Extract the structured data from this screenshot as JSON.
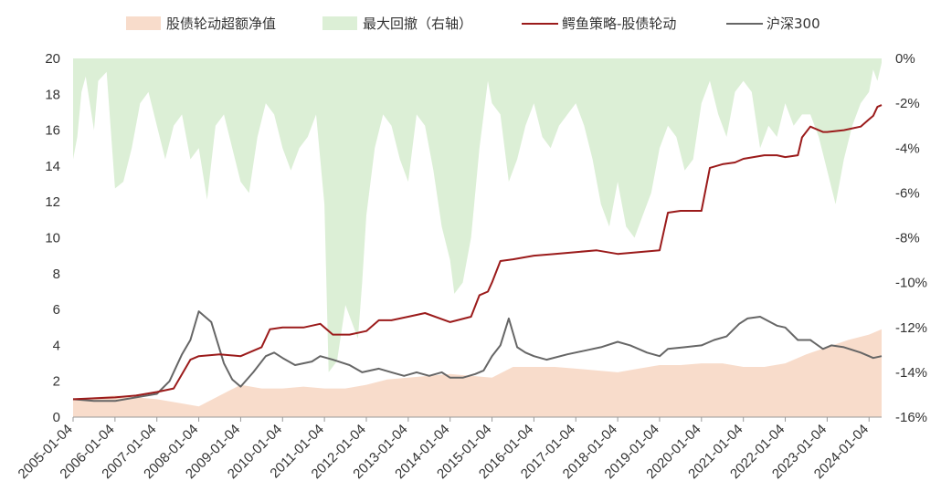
{
  "chart_data": {
    "type": "line",
    "title": "",
    "xlabel": "",
    "ylabel": "",
    "ylim": [
      0,
      20
    ],
    "y2lim": [
      -16,
      0
    ],
    "left_ticks": [
      "0",
      "2",
      "4",
      "6",
      "8",
      "10",
      "12",
      "14",
      "16",
      "18",
      "20"
    ],
    "right_ticks": [
      "0%",
      "-2%",
      "-4%",
      "-6%",
      "-8%",
      "-10%",
      "-12%",
      "-14%",
      "-16%"
    ],
    "x_ticks": [
      "2005-01-04",
      "2006-01-04",
      "2007-01-04",
      "2008-01-04",
      "2009-01-04",
      "2010-01-04",
      "2011-01-04",
      "2012-01-04",
      "2013-01-04",
      "2014-01-04",
      "2015-01-04",
      "2016-01-04",
      "2017-01-04",
      "2018-01-04",
      "2019-01-04",
      "2020-01-04",
      "2021-01-04",
      "2022-01-04",
      "2023-01-04",
      "2024-01-04"
    ],
    "legend": [
      {
        "name": "股债轮动超额净值",
        "kind": "area",
        "color": "#f8dccb"
      },
      {
        "name": "最大回撤（右轴）",
        "kind": "area",
        "color": "#dcefd6"
      },
      {
        "name": "鳄鱼策略-股债轮动",
        "kind": "line",
        "color": "#9b1b1b"
      },
      {
        "name": "沪深300",
        "kind": "line",
        "color": "#666666"
      }
    ],
    "series": [
      {
        "name": "鳄鱼策略-股债轮动",
        "axis": "left",
        "x": [
          2005.0,
          2005.5,
          2006.0,
          2006.5,
          2007.0,
          2007.4,
          2007.8,
          2008.0,
          2008.5,
          2009.0,
          2009.5,
          2009.7,
          2010.0,
          2010.5,
          2010.9,
          2011.2,
          2011.6,
          2012.0,
          2012.3,
          2012.6,
          2013.0,
          2013.4,
          2014.0,
          2014.5,
          2014.7,
          2014.9,
          2015.0,
          2015.2,
          2015.5,
          2016.0,
          2016.5,
          2017.0,
          2017.5,
          2018.0,
          2018.5,
          2019.0,
          2019.2,
          2019.5,
          2020.0,
          2020.2,
          2020.5,
          2020.8,
          2021.0,
          2021.5,
          2021.8,
          2022.0,
          2022.3,
          2022.4,
          2022.6,
          2022.9,
          2023.0,
          2023.4,
          2023.8,
          2024.0,
          2024.1,
          2024.2,
          2024.3
        ],
        "values": [
          1.0,
          1.05,
          1.1,
          1.2,
          1.4,
          1.6,
          3.2,
          3.4,
          3.5,
          3.4,
          3.9,
          4.9,
          5.0,
          5.0,
          5.2,
          4.6,
          4.6,
          4.8,
          5.4,
          5.4,
          5.6,
          5.8,
          5.3,
          5.6,
          6.8,
          7.0,
          7.5,
          8.7,
          8.8,
          9.0,
          9.1,
          9.2,
          9.3,
          9.1,
          9.2,
          9.3,
          11.4,
          11.5,
          11.5,
          13.9,
          14.1,
          14.2,
          14.4,
          14.6,
          14.6,
          14.5,
          14.6,
          15.6,
          16.2,
          15.9,
          15.9,
          16.0,
          16.2,
          16.6,
          16.8,
          17.3,
          17.4
        ]
      },
      {
        "name": "沪深300",
        "axis": "left",
        "x": [
          2005.0,
          2005.5,
          2006.0,
          2006.5,
          2007.0,
          2007.3,
          2007.6,
          2007.8,
          2008.0,
          2008.3,
          2008.6,
          2008.8,
          2009.0,
          2009.3,
          2009.6,
          2009.8,
          2010.0,
          2010.3,
          2010.7,
          2010.9,
          2011.2,
          2011.6,
          2011.9,
          2012.3,
          2012.6,
          2012.9,
          2013.2,
          2013.5,
          2013.8,
          2014.0,
          2014.3,
          2014.6,
          2014.8,
          2015.0,
          2015.2,
          2015.4,
          2015.6,
          2015.8,
          2016.0,
          2016.3,
          2016.8,
          2017.2,
          2017.6,
          2018.0,
          2018.3,
          2018.7,
          2019.0,
          2019.2,
          2019.6,
          2020.0,
          2020.3,
          2020.6,
          2020.9,
          2021.1,
          2021.4,
          2021.8,
          2022.0,
          2022.3,
          2022.6,
          2022.9,
          2023.1,
          2023.4,
          2023.8,
          2024.0,
          2024.1,
          2024.3
        ],
        "values": [
          1.0,
          0.9,
          0.9,
          1.1,
          1.3,
          2.0,
          3.5,
          4.3,
          5.9,
          5.3,
          3.0,
          2.1,
          1.7,
          2.5,
          3.4,
          3.6,
          3.3,
          2.9,
          3.1,
          3.4,
          3.2,
          2.9,
          2.5,
          2.7,
          2.5,
          2.3,
          2.5,
          2.3,
          2.5,
          2.2,
          2.2,
          2.4,
          2.6,
          3.4,
          4.0,
          5.5,
          3.9,
          3.6,
          3.4,
          3.2,
          3.5,
          3.7,
          3.9,
          4.2,
          4.0,
          3.6,
          3.4,
          3.8,
          3.9,
          4.0,
          4.3,
          4.5,
          5.2,
          5.5,
          5.6,
          5.1,
          5.0,
          4.3,
          4.3,
          3.8,
          4.0,
          3.9,
          3.6,
          3.4,
          3.3,
          3.4
        ]
      },
      {
        "name": "股债轮动超额净值",
        "axis": "left",
        "x": [
          2005.0,
          2005.5,
          2006.0,
          2006.5,
          2007.0,
          2007.5,
          2008.0,
          2008.5,
          2009.0,
          2009.5,
          2010.0,
          2010.5,
          2011.0,
          2011.5,
          2012.0,
          2012.5,
          2013.0,
          2013.5,
          2014.0,
          2014.5,
          2015.0,
          2015.5,
          2016.0,
          2016.5,
          2017.0,
          2017.5,
          2018.0,
          2018.5,
          2019.0,
          2019.5,
          2020.0,
          2020.5,
          2021.0,
          2021.5,
          2022.0,
          2022.5,
          2023.0,
          2023.5,
          2024.0,
          2024.3
        ],
        "values": [
          1.0,
          1.1,
          1.2,
          1.1,
          1.0,
          0.8,
          0.6,
          1.2,
          1.8,
          1.6,
          1.6,
          1.7,
          1.6,
          1.6,
          1.8,
          2.1,
          2.2,
          2.3,
          2.4,
          2.3,
          2.2,
          2.8,
          2.8,
          2.8,
          2.7,
          2.6,
          2.5,
          2.7,
          2.9,
          2.9,
          3.0,
          3.0,
          2.8,
          2.8,
          3.0,
          3.5,
          3.9,
          4.3,
          4.6,
          4.9
        ]
      },
      {
        "name": "最大回撤（右轴）",
        "axis": "right",
        "x": [
          2005.0,
          2005.1,
          2005.2,
          2005.3,
          2005.4,
          2005.5,
          2005.6,
          2005.8,
          2006.0,
          2006.2,
          2006.4,
          2006.6,
          2006.8,
          2007.0,
          2007.2,
          2007.4,
          2007.6,
          2007.8,
          2008.0,
          2008.2,
          2008.4,
          2008.6,
          2008.8,
          2009.0,
          2009.2,
          2009.4,
          2009.6,
          2009.8,
          2010.0,
          2010.2,
          2010.4,
          2010.6,
          2010.8,
          2011.0,
          2011.1,
          2011.3,
          2011.5,
          2011.8,
          2011.9,
          2012.0,
          2012.2,
          2012.4,
          2012.6,
          2012.8,
          2013.0,
          2013.2,
          2013.4,
          2013.6,
          2013.8,
          2014.0,
          2014.1,
          2014.3,
          2014.5,
          2014.7,
          2014.9,
          2015.0,
          2015.2,
          2015.4,
          2015.6,
          2015.8,
          2016.0,
          2016.2,
          2016.4,
          2016.6,
          2016.8,
          2017.0,
          2017.2,
          2017.4,
          2017.6,
          2017.8,
          2018.0,
          2018.2,
          2018.4,
          2018.6,
          2018.8,
          2019.0,
          2019.2,
          2019.4,
          2019.6,
          2019.8,
          2020.0,
          2020.2,
          2020.4,
          2020.6,
          2020.8,
          2021.0,
          2021.2,
          2021.4,
          2021.6,
          2021.8,
          2022.0,
          2022.2,
          2022.4,
          2022.6,
          2022.8,
          2023.0,
          2023.2,
          2023.4,
          2023.6,
          2023.8,
          2024.0,
          2024.1,
          2024.2,
          2024.3
        ],
        "values": [
          -4.5,
          -3.5,
          -1.5,
          -0.8,
          -2.0,
          -3.2,
          -1.0,
          -0.6,
          -5.8,
          -5.5,
          -4.0,
          -2.0,
          -1.5,
          -3.0,
          -4.5,
          -3.0,
          -2.5,
          -4.5,
          -4.0,
          -6.3,
          -3.0,
          -2.5,
          -4.0,
          -5.5,
          -6.0,
          -3.5,
          -2.0,
          -2.5,
          -4.0,
          -5.0,
          -4.0,
          -3.5,
          -2.5,
          -6.5,
          -14.0,
          -13.5,
          -11.0,
          -12.5,
          -10.0,
          -7.0,
          -4.0,
          -2.5,
          -3.0,
          -4.5,
          -5.5,
          -2.5,
          -3.0,
          -5.0,
          -7.5,
          -9.0,
          -10.5,
          -10.0,
          -8.0,
          -4.0,
          -1.0,
          -2.0,
          -2.5,
          -5.5,
          -4.5,
          -3.0,
          -2.0,
          -3.5,
          -4.0,
          -3.0,
          -2.5,
          -2.0,
          -3.0,
          -4.5,
          -6.5,
          -7.5,
          -5.5,
          -7.5,
          -8.0,
          -7.0,
          -6.0,
          -4.0,
          -3.0,
          -3.5,
          -5.0,
          -4.5,
          -2.0,
          -1.0,
          -2.5,
          -3.5,
          -1.5,
          -1.0,
          -1.5,
          -4.0,
          -3.0,
          -3.5,
          -2.0,
          -3.0,
          -2.5,
          -2.5,
          -3.5,
          -5.0,
          -6.5,
          -4.5,
          -3.0,
          -2.0,
          -1.5,
          -0.5,
          -1.0,
          -0.2
        ]
      }
    ]
  }
}
